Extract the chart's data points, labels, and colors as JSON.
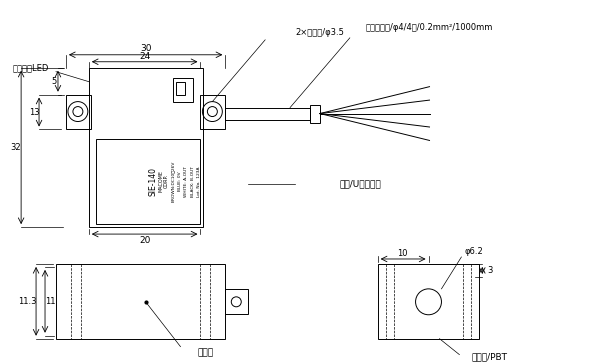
{
  "bg_color": "#ffffff",
  "line_color": "#000000",
  "text_color": "#000000",
  "annotations": {
    "led_label": "動作表示LED",
    "mounting_hole": "2×取付穴/φ3.5",
    "output_cable": "出力コード/φ4/4芯/0.2mm²/1000mm",
    "cover": "フタ/Uポリマー",
    "detection_surface": "検出面",
    "case": "ケース/PBT",
    "phi62": "φ6.2"
  },
  "dims": {
    "dim_30": "30",
    "dim_24": "24",
    "dim_5": "5",
    "dim_13": "13",
    "dim_32": "32",
    "dim_20": "20",
    "dim_11_3": "11.3",
    "dim_11": "11",
    "dim_10": "10",
    "dim_3": "3"
  },
  "label_lines": [
    "SIE-140",
    "MACOME",
    "CORP.",
    "BROWN:DC10~26V",
    "BLUE: 0V",
    "WHITE: A-OUT",
    "BLACK: B-OUT",
    "Lot. No.  123A"
  ]
}
